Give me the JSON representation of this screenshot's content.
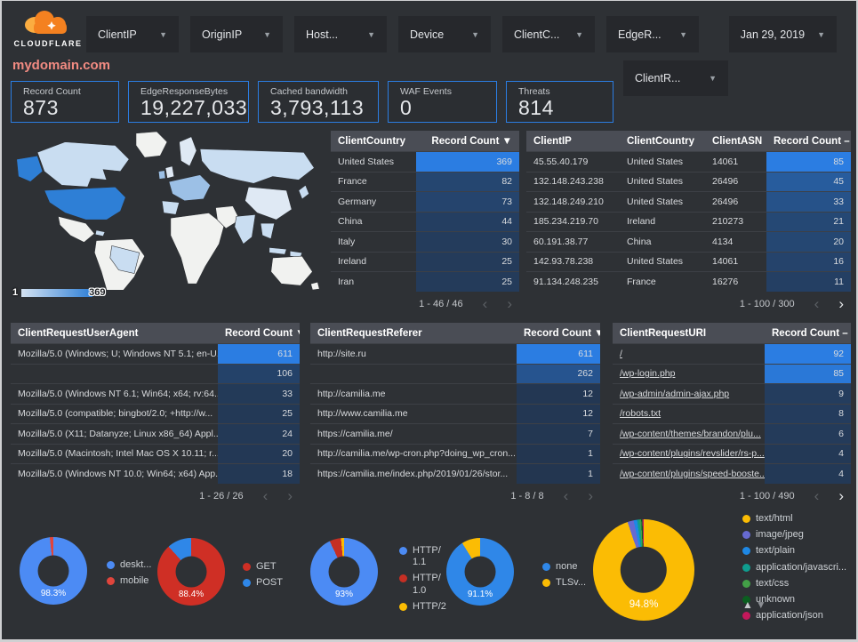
{
  "header": {
    "logo_text": "CLOUDFLARE",
    "domain": "mydomain.com",
    "filters": [
      {
        "id": "clientip",
        "label": "ClientIP"
      },
      {
        "id": "originip",
        "label": "OriginIP"
      },
      {
        "id": "host",
        "label": "Host..."
      },
      {
        "id": "device",
        "label": "Device"
      },
      {
        "id": "clientcountry",
        "label": "ClientC..."
      },
      {
        "id": "edgeresponse",
        "label": "EdgeR..."
      }
    ],
    "date_label": "Jan 29, 2019",
    "secondary_filter": {
      "id": "clientrequest",
      "label": "ClientR..."
    }
  },
  "scorecards": [
    {
      "label": "Record Count",
      "value": "873"
    },
    {
      "label": "EdgeResponseBytes",
      "value": "19,227,033"
    },
    {
      "label": "Cached bandwidth",
      "value": "3,793,113"
    },
    {
      "label": "WAF Events",
      "value": "0"
    },
    {
      "label": "Threats",
      "value": "814"
    }
  ],
  "map": {
    "legend_min": "1",
    "legend_max": "369"
  },
  "tables": {
    "client_country": {
      "columns": [
        "ClientCountry",
        "Record Count"
      ],
      "sort_indicator": "▼",
      "heat_col": 1,
      "rows": [
        [
          "United States",
          369
        ],
        [
          "France",
          82
        ],
        [
          "Germany",
          73
        ],
        [
          "China",
          44
        ],
        [
          "Italy",
          30
        ],
        [
          "Ireland",
          25
        ],
        [
          "Iran",
          25
        ]
      ],
      "pagination": "1 - 46 / 46",
      "can_prev": false,
      "can_next": false
    },
    "client_ip": {
      "columns": [
        "ClientIP",
        "ClientCountry",
        "ClientASN",
        "Record Count"
      ],
      "sort_indicator": "–",
      "heat_col": 3,
      "rows": [
        [
          "45.55.40.179",
          "United States",
          "14061",
          85
        ],
        [
          "132.148.243.238",
          "United States",
          "26496",
          45
        ],
        [
          "132.148.249.210",
          "United States",
          "26496",
          33
        ],
        [
          "185.234.219.70",
          "Ireland",
          "210273",
          21
        ],
        [
          "60.191.38.77",
          "China",
          "4134",
          20
        ],
        [
          "142.93.78.238",
          "United States",
          "14061",
          16
        ],
        [
          "91.134.248.235",
          "France",
          "16276",
          11
        ]
      ],
      "pagination": "1 - 100 / 300",
      "can_prev": false,
      "can_next": true
    },
    "user_agent": {
      "columns": [
        "ClientRequestUserAgent",
        "Record Count"
      ],
      "sort_indicator": "▼",
      "heat_col": 1,
      "rows": [
        [
          "Mozilla/5.0 (Windows; U; Windows NT 5.1; en-U...",
          611
        ],
        [
          "",
          106
        ],
        [
          "Mozilla/5.0 (Windows NT 6.1; Win64; x64; rv:64...",
          33
        ],
        [
          "Mozilla/5.0 (compatible; bingbot/2.0; +http://w...",
          25
        ],
        [
          "Mozilla/5.0 (X11; Datanyze; Linux x86_64) Appl...",
          24
        ],
        [
          "Mozilla/5.0 (Macintosh; Intel Mac OS X 10.11; r...",
          20
        ],
        [
          "Mozilla/5.0 (Windows NT 10.0; Win64; x64) App...",
          18
        ]
      ],
      "pagination": "1 - 26 / 26",
      "can_prev": false,
      "can_next": false
    },
    "referer": {
      "columns": [
        "ClientRequestReferer",
        "Record Count"
      ],
      "sort_indicator": "▼",
      "heat_col": 1,
      "rows": [
        [
          "http://site.ru",
          611
        ],
        [
          "",
          262
        ],
        [
          "http://camilia.me",
          12
        ],
        [
          "http://www.camilia.me",
          12
        ],
        [
          "https://camilia.me/",
          7
        ],
        [
          "http://camilia.me/wp-cron.php?doing_wp_cron...",
          1
        ],
        [
          "https://camilia.me/index.php/2019/01/26/stor...",
          1
        ]
      ],
      "pagination": "1 - 8 / 8",
      "can_prev": false,
      "can_next": false
    },
    "uri": {
      "columns": [
        "ClientRequestURI",
        "Record Count"
      ],
      "sort_indicator": "–",
      "heat_col": 1,
      "links": true,
      "rows": [
        [
          "/",
          92
        ],
        [
          "/wp-login.php",
          85
        ],
        [
          "/wp-admin/admin-ajax.php",
          9
        ],
        [
          "/robots.txt",
          8
        ],
        [
          "/wp-content/themes/brandon/plu...",
          6
        ],
        [
          "/wp-content/plugins/revslider/rs-p...",
          4
        ],
        [
          "/wp-content/plugins/speed-booste...",
          4
        ]
      ],
      "pagination": "1 - 100 / 490",
      "can_prev": false,
      "can_next": true
    }
  },
  "donuts": [
    {
      "name": "device-type",
      "center_label": "98.3%",
      "slices": [
        {
          "label": "deskt...",
          "value": 98.3,
          "color": "#4c8bf4"
        },
        {
          "label": "mobile",
          "value": 1.7,
          "color": "#e0453c"
        }
      ]
    },
    {
      "name": "request-method",
      "center_label": "88.4%",
      "slices": [
        {
          "label": "GET",
          "value": 88.4,
          "color": "#cf2f25"
        },
        {
          "label": "POST",
          "value": 11.6,
          "color": "#2f87e8"
        }
      ]
    },
    {
      "name": "http-protocol",
      "center_label": "93%",
      "slices": [
        {
          "label": "HTTP/\n1.1",
          "value": 93.0,
          "color": "#4c8bf4"
        },
        {
          "label": "HTTP/\n1.0",
          "value": 5.5,
          "color": "#c52f24"
        },
        {
          "label": "HTTP/2",
          "value": 1.5,
          "color": "#fbbc04"
        }
      ]
    },
    {
      "name": "tls-version",
      "center_label": "91.1%",
      "slices": [
        {
          "label": "none",
          "value": 91.1,
          "color": "#2f87e8"
        },
        {
          "label": "TLSv...",
          "value": 8.9,
          "color": "#fbbc04"
        }
      ]
    },
    {
      "name": "content-type",
      "center_label": "94.8%",
      "slices": [
        {
          "label": "text/html",
          "value": 94.8,
          "color": "#fbbc04"
        },
        {
          "label": "image/jpeg",
          "value": 2.0,
          "color": "#666ad1"
        },
        {
          "label": "text/plain",
          "value": 1.1,
          "color": "#1e88e5"
        },
        {
          "label": "application/javascri...",
          "value": 0.8,
          "color": "#0f9d8f"
        },
        {
          "label": "text/css",
          "value": 0.5,
          "color": "#43a047"
        },
        {
          "label": "unknown",
          "value": 0.4,
          "color": "#0b5e20"
        },
        {
          "label": "application/json",
          "value": 0.4,
          "color": "#c2185b"
        }
      ]
    }
  ],
  "sort_arrows": {
    "up": "▲",
    "down": "▼"
  },
  "colors": {
    "accent_blue": "#2b7de2",
    "heat_base": "#233650",
    "heat_hot": "#2b7de2",
    "domain_text": "#f28b82",
    "map_max": "#2e7fd6"
  }
}
